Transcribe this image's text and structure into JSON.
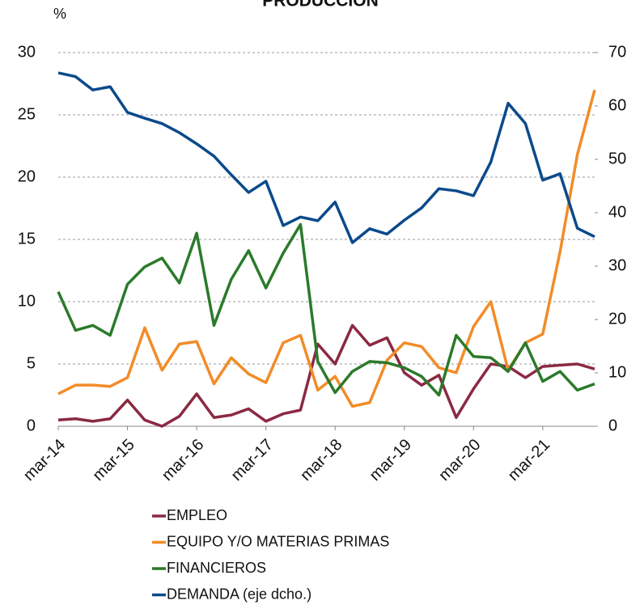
{
  "chart_data": {
    "type": "line",
    "title": "PRODUCCIÓN",
    "y_label": "%",
    "categories": [
      "mar-14",
      null,
      null,
      null,
      "mar-15",
      null,
      null,
      null,
      "mar-16",
      null,
      null,
      null,
      "mar-17",
      null,
      null,
      null,
      "mar-18",
      null,
      null,
      null,
      "mar-19",
      null,
      null,
      null,
      "mar-20",
      null,
      null,
      null,
      "mar-21",
      null,
      null,
      null
    ],
    "series": [
      {
        "name": "EMPLEO",
        "color": "#8b2942",
        "values": [
          0.5,
          0.6,
          0.4,
          0.6,
          2.1,
          0.5,
          0,
          0.8,
          2.6,
          0.7,
          0.9,
          1.4,
          0.4,
          1,
          1.3,
          6.6,
          5,
          8.1,
          6.5,
          7.1,
          4.3,
          3.3,
          4.1,
          0.7,
          3,
          5,
          4.8,
          3.9,
          4.8,
          4.9,
          5,
          4.6
        ]
      },
      {
        "name": "EQUIPO Y/O MATERIAS PRIMAS",
        "color": "#f28c28",
        "values": [
          2.6,
          3.3,
          3.3,
          3.2,
          3.9,
          7.9,
          4.5,
          6.6,
          6.8,
          3.4,
          5.5,
          4.2,
          3.5,
          6.7,
          7.3,
          2.9,
          4,
          1.6,
          1.9,
          5.3,
          6.7,
          6.4,
          4.7,
          4.3,
          8,
          10,
          4.5,
          6.7,
          7.4,
          14,
          21.8,
          27
        ]
      },
      {
        "name": "FINANCIEROS",
        "color": "#2b7a2b",
        "values": [
          10.8,
          7.7,
          8.1,
          7.3,
          11.4,
          12.8,
          13.5,
          11.5,
          15.5,
          8.1,
          11.8,
          14.1,
          11.1,
          13.9,
          16.2,
          5.2,
          2.7,
          4.4,
          5.2,
          5.1,
          4.7,
          4,
          2.5,
          7.3,
          5.6,
          5.5,
          4.4,
          6.7,
          3.6,
          4.4,
          2.9,
          3.4
        ]
      },
      {
        "name": "DEMANDA (eje dcho.)",
        "color": "#0b4a8b",
        "axis": "y2",
        "values": [
          66.2,
          65.5,
          63,
          63.6,
          58.8,
          57.7,
          56.7,
          55,
          52.9,
          50.6,
          47.1,
          43.8,
          45.9,
          37.6,
          39.2,
          38.5,
          42,
          34.4,
          37,
          36,
          38.6,
          40.9,
          44.5,
          44.1,
          43.2,
          49.5,
          60.5,
          56.7,
          46.1,
          47.3,
          37.1,
          35.5
        ]
      }
    ],
    "ylim": [
      0,
      30
    ],
    "yticks": [
      0,
      5,
      10,
      15,
      20,
      25,
      30
    ],
    "y2lim": [
      0,
      70
    ],
    "y2ticks": [
      0,
      10,
      20,
      30,
      40,
      50,
      60,
      70
    ],
    "grid": true,
    "legend": "bottom"
  }
}
